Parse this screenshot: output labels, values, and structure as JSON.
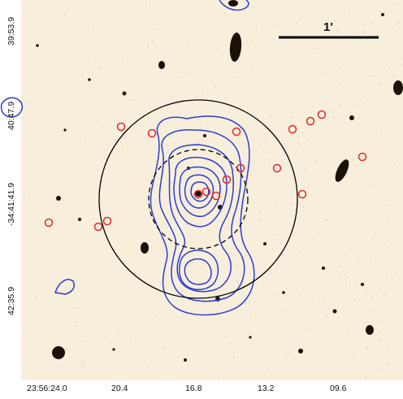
{
  "figure": {
    "scale_bar_label": "1'",
    "x_axis_ticks": [
      "23:56:24.0",
      "20.4",
      "16.8",
      "13.2",
      "09.6"
    ],
    "y_axis_ticks": [
      "39:53.9",
      "40:47.9",
      "-34:41:41.9",
      "42:35.9"
    ],
    "colors": {
      "background": "#f7efdc",
      "sources": "#1a1208",
      "contours": "#2b3bd6",
      "markers": "#e3282b",
      "circles": "#000000"
    }
  }
}
